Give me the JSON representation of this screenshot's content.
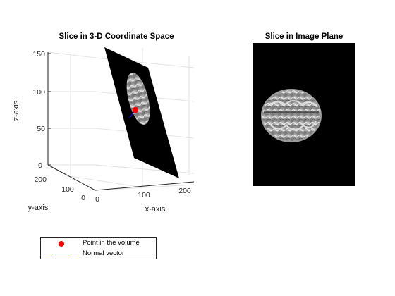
{
  "left_axes": {
    "title": "Slice in 3-D Coordinate Space",
    "x_label": "x-axis",
    "y_label": "y-axis",
    "z_label": "z-axis",
    "x_ticks": [
      "0",
      "100",
      "200"
    ],
    "y_ticks": [
      "0",
      "100",
      "200"
    ],
    "z_ticks": [
      "0",
      "50",
      "100",
      "150"
    ]
  },
  "right_axes": {
    "title": "Slice in Image Plane"
  },
  "legend": {
    "items": [
      {
        "label": "Point in the volume",
        "color": "#ff0000",
        "marker": "dot"
      },
      {
        "label": "Normal vector",
        "color": "#0000cc",
        "marker": "line"
      }
    ]
  },
  "colors": {
    "point": "#ff0000",
    "normal": "#0000cc",
    "slice_background": "#000000",
    "grid": "#e3e3e3"
  }
}
